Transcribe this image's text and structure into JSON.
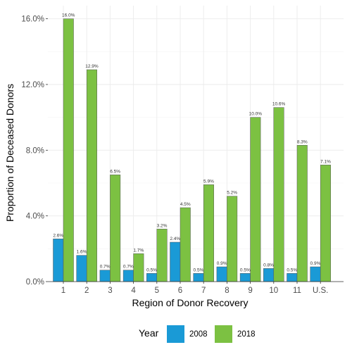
{
  "chart_data": {
    "type": "bar",
    "categories": [
      "1",
      "2",
      "3",
      "4",
      "5",
      "6",
      "7",
      "8",
      "9",
      "10",
      "11",
      "U.S."
    ],
    "series": [
      {
        "name": "2008",
        "color": "#1a9ad6",
        "values": [
          2.6,
          1.6,
          0.7,
          0.7,
          0.5,
          2.4,
          0.5,
          0.9,
          0.5,
          0.8,
          0.5,
          0.9
        ],
        "labels": [
          "2.6%",
          "1.6%",
          "0.7%",
          "0.7%",
          "0.5%",
          "2.4%",
          "0.5%",
          "0.9%",
          "0.5%",
          "0.8%",
          "0.5%",
          "0.9%"
        ]
      },
      {
        "name": "2018",
        "color": "#7cc142",
        "values": [
          16.0,
          12.9,
          6.5,
          1.7,
          3.2,
          4.5,
          5.9,
          5.2,
          10.0,
          10.6,
          8.3,
          7.1
        ],
        "labels": [
          "16.0%",
          "12.9%",
          "6.5%",
          "1.7%",
          "3.2%",
          "4.5%",
          "5.9%",
          "5.2%",
          "10.0%",
          "10.6%",
          "8.3%",
          "7.1%"
        ]
      }
    ],
    "xlabel": "Region of Donor Recovery",
    "ylabel": "Proportion of Deceased Donors",
    "ylim": [
      0,
      16.8
    ],
    "yticks": [
      0,
      4,
      8,
      12,
      16
    ],
    "ytick_labels": [
      "0.0%",
      "4.0%",
      "8.0%",
      "12.0%",
      "16.0%"
    ],
    "legend_title": "Year",
    "legend_position": "bottom",
    "grid": true
  }
}
